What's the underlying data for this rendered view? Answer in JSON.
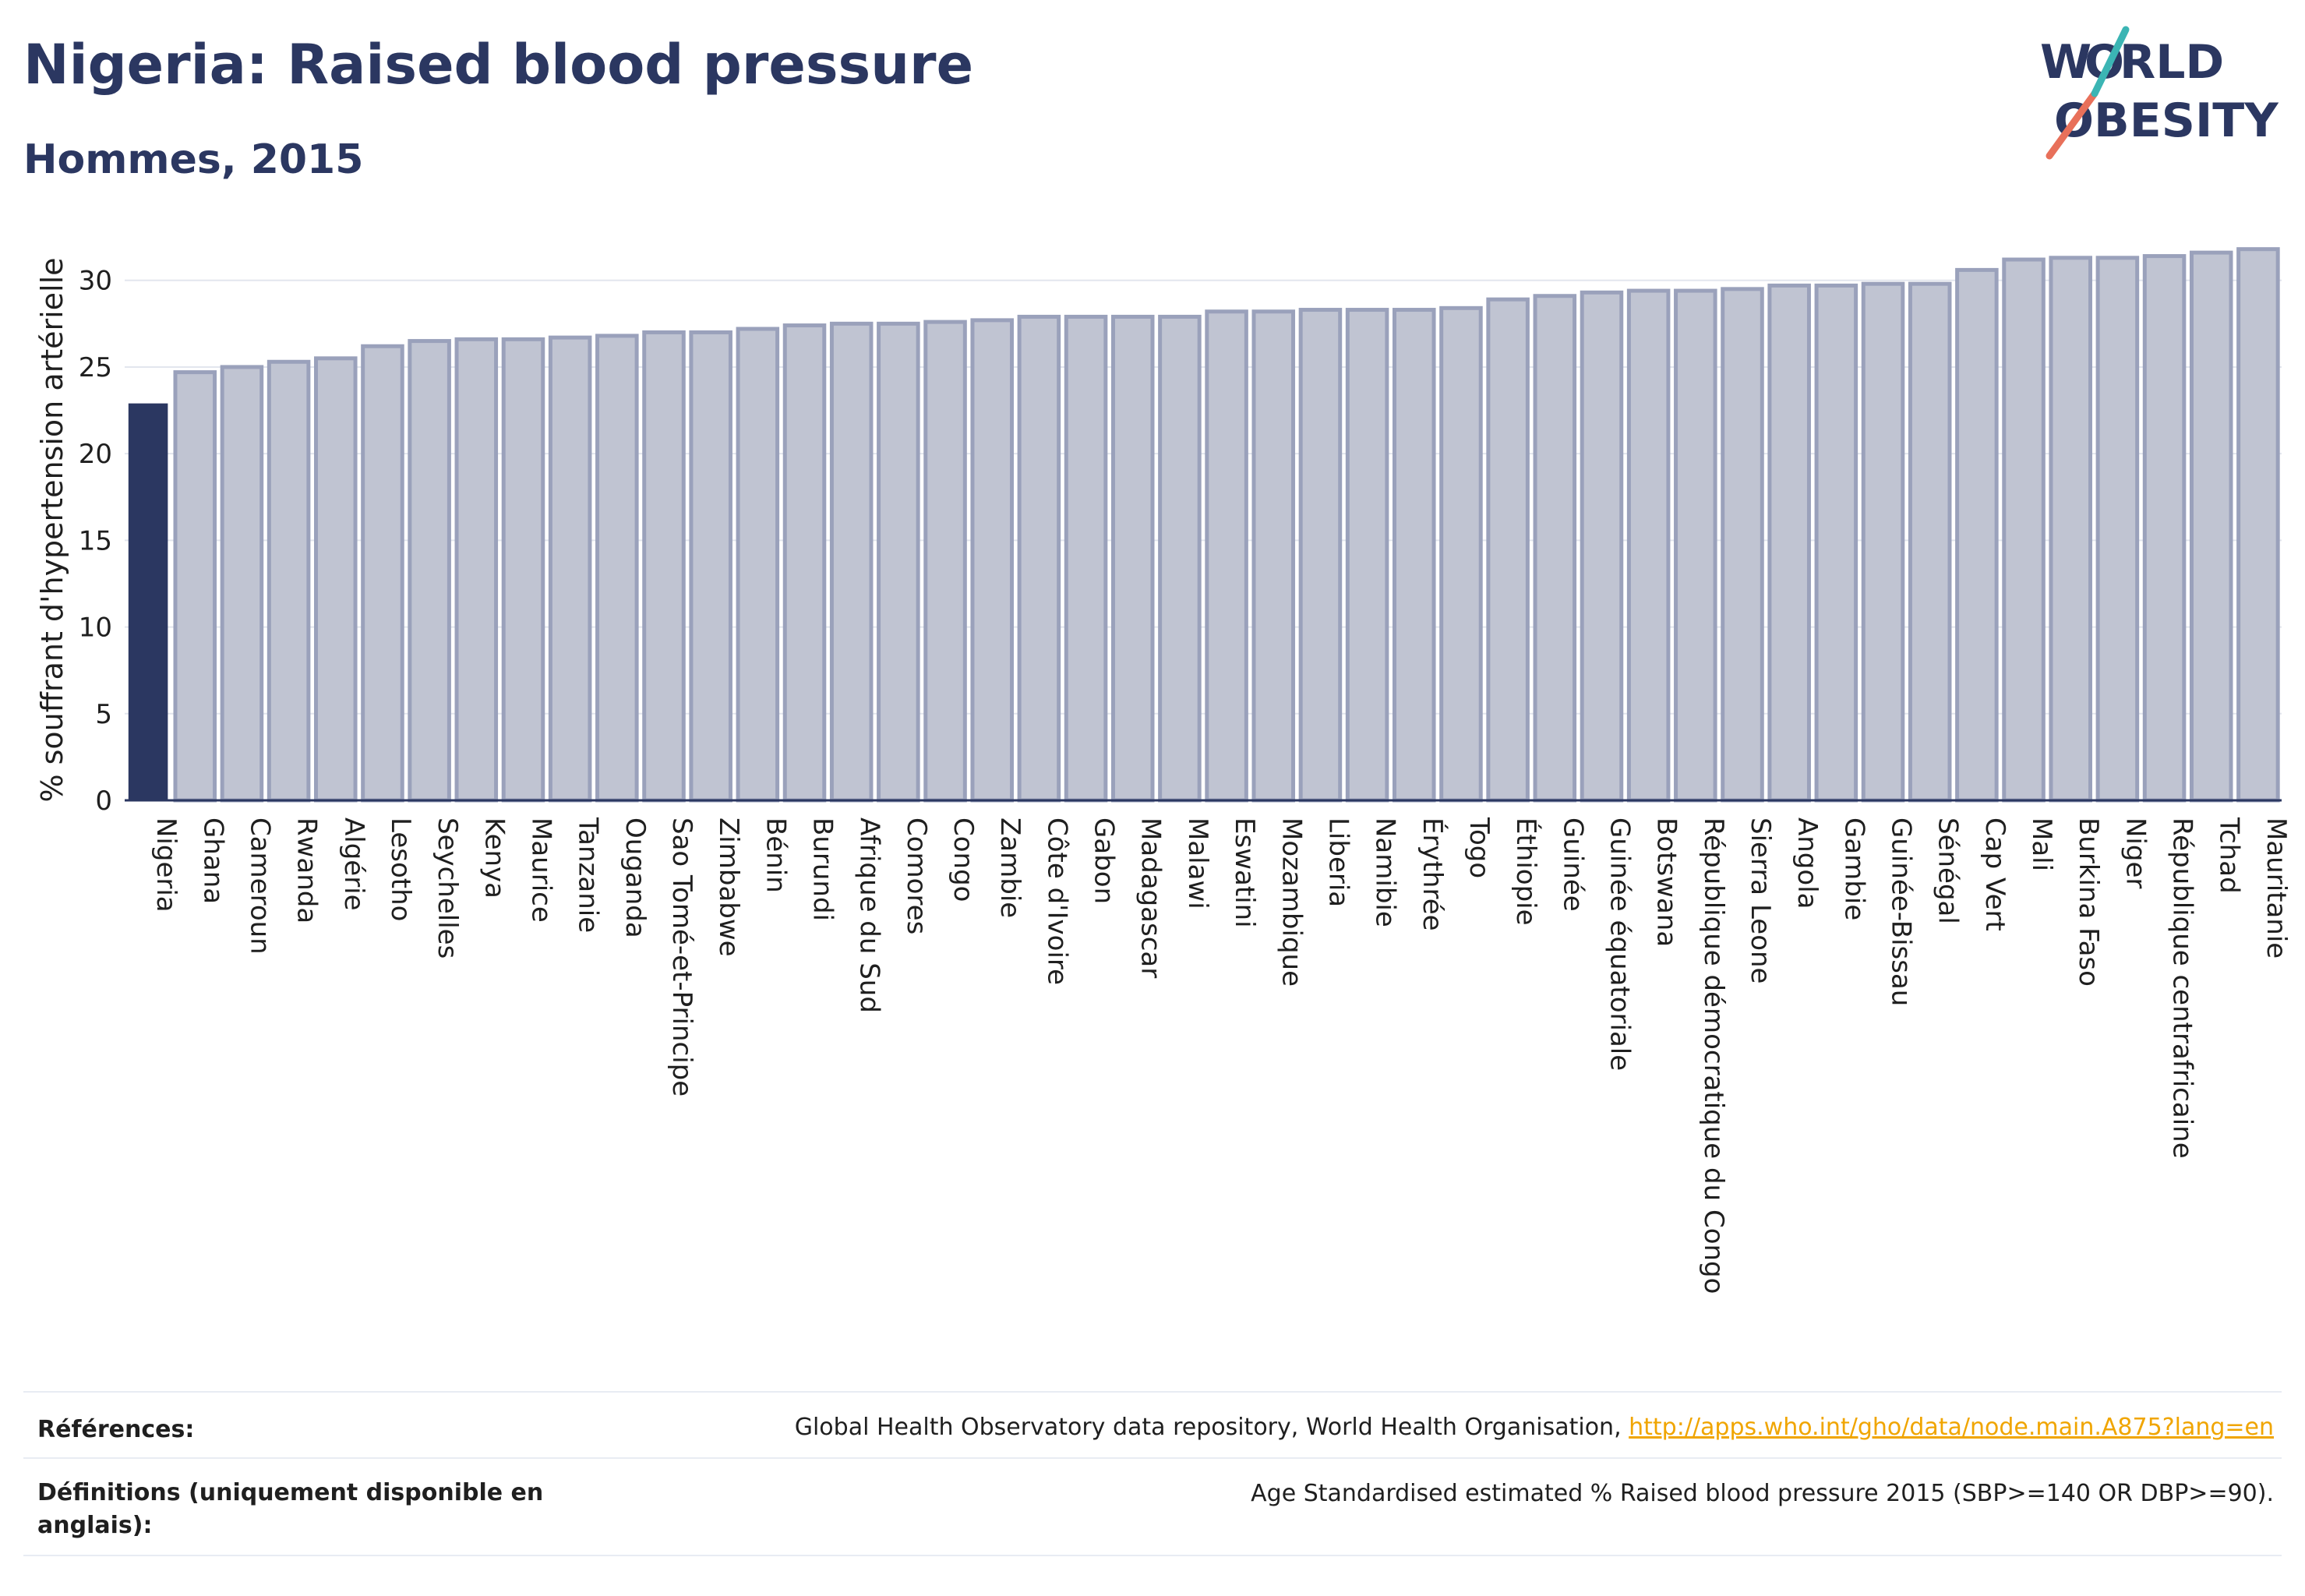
{
  "header": {
    "title": "Nigeria: Raised blood pressure",
    "subtitle": "Hommes, 2015",
    "logo_text": "WORLD OBESITY"
  },
  "colors": {
    "highlight": "#2b3761",
    "bar_fill": "#c0c4d2",
    "bar_stroke": "#9aa1bb",
    "grid": "#e3e6ee",
    "axis": "#2b3761",
    "link": "#f0a500"
  },
  "chart_data": {
    "type": "bar",
    "ylabel": "% souffrant d'hypertension artérielle",
    "xlabel": "",
    "ylim": [
      0,
      33
    ],
    "yticks": [
      0,
      5,
      10,
      15,
      20,
      25,
      30
    ],
    "grid": true,
    "highlight": "Nigeria",
    "categories": [
      "Nigeria",
      "Ghana",
      "Cameroun",
      "Rwanda",
      "Algérie",
      "Lesotho",
      "Seychelles",
      "Kenya",
      "Maurice",
      "Tanzanie",
      "Ouganda",
      "Sao Tomé-et-Principe",
      "Zimbabwe",
      "Bénin",
      "Burundi",
      "Afrique du Sud",
      "Comores",
      "Congo",
      "Zambie",
      "Côte d'Ivoire",
      "Gabon",
      "Madagascar",
      "Malawi",
      "Eswatini",
      "Mozambique",
      "Liberia",
      "Namibie",
      "Érythrée",
      "Togo",
      "Éthiopie",
      "Guinée",
      "Guinée équatoriale",
      "Botswana",
      "République démocratique du Congo",
      "Sierra Leone",
      "Angola",
      "Gambie",
      "Guinée-Bissau",
      "Sénégal",
      "Cap Vert",
      "Mali",
      "Burkina Faso",
      "Niger",
      "République centrafricaine",
      "Tchad",
      "Mauritanie"
    ],
    "values": [
      22.9,
      24.7,
      25.0,
      25.3,
      25.5,
      26.2,
      26.5,
      26.6,
      26.6,
      26.7,
      26.8,
      27.0,
      27.0,
      27.2,
      27.4,
      27.5,
      27.5,
      27.6,
      27.7,
      27.9,
      27.9,
      27.9,
      27.9,
      28.2,
      28.2,
      28.3,
      28.3,
      28.3,
      28.4,
      28.9,
      29.1,
      29.3,
      29.4,
      29.4,
      29.5,
      29.7,
      29.7,
      29.8,
      29.8,
      30.6,
      31.2,
      31.3,
      31.3,
      31.4,
      31.6,
      31.8
    ]
  },
  "footer": {
    "references_label": "Références:",
    "references_text": "Global Health Observatory data repository, World Health Organisation, ",
    "references_link": "http://apps.who.int/gho/data/node.main.A875?lang=en",
    "definitions_label": "Définitions (uniquement disponible en anglais):",
    "definitions_text": "Age Standardised estimated % Raised blood pressure 2015 (SBP>=140 OR DBP>=90)."
  }
}
